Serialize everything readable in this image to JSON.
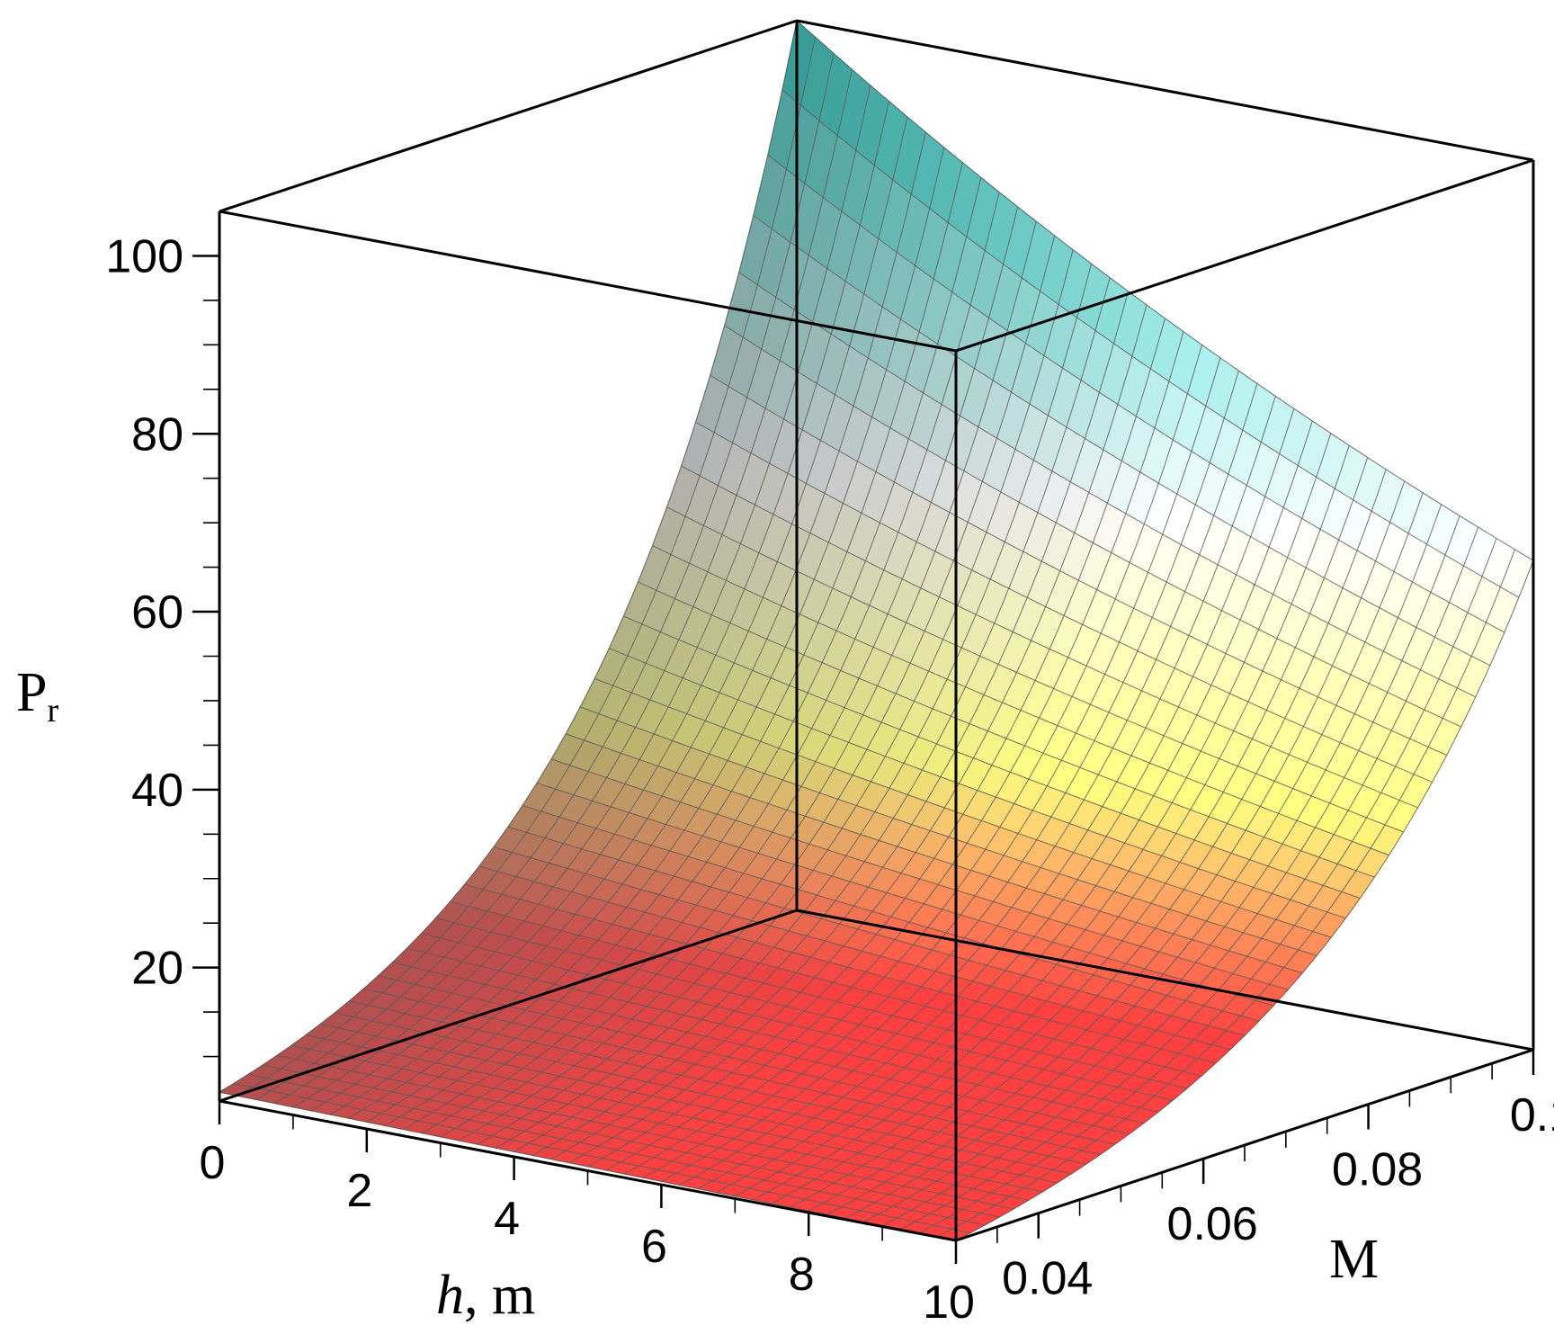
{
  "chart_data": {
    "type": "surface3d",
    "z_axis": {
      "label": "P",
      "label_subscript": "r",
      "ticks": [
        20,
        40,
        60,
        80,
        100
      ],
      "tick_labels": [
        "20",
        "40",
        "60",
        "80",
        "100"
      ],
      "range": [
        5,
        105
      ]
    },
    "x_axis": {
      "label_italic": "h",
      "label_rest": ", m",
      "ticks": [
        0,
        2,
        4,
        6,
        8,
        10
      ],
      "tick_labels": [
        "0",
        "2",
        "4",
        "6",
        "8",
        "10"
      ],
      "range": [
        0,
        10
      ]
    },
    "y_axis": {
      "label": "M",
      "ticks": [
        0.04,
        0.06,
        0.08,
        0.1
      ],
      "tick_labels": [
        "0.04",
        "0.06",
        "0.08",
        "0.1"
      ],
      "range": [
        0.03,
        0.1
      ]
    },
    "corner_values": [
      {
        "h": 0,
        "M": 0.03,
        "Pr": 6
      },
      {
        "h": 10,
        "M": 0.03,
        "Pr": 5
      },
      {
        "h": 10,
        "M": 0.1,
        "Pr": 60
      },
      {
        "h": 0,
        "M": 0.1,
        "Pr": 105
      }
    ],
    "colors": [
      "#00d2c8",
      "#ffffff",
      "#ffff80",
      "#ff4040",
      "#606060"
    ]
  }
}
